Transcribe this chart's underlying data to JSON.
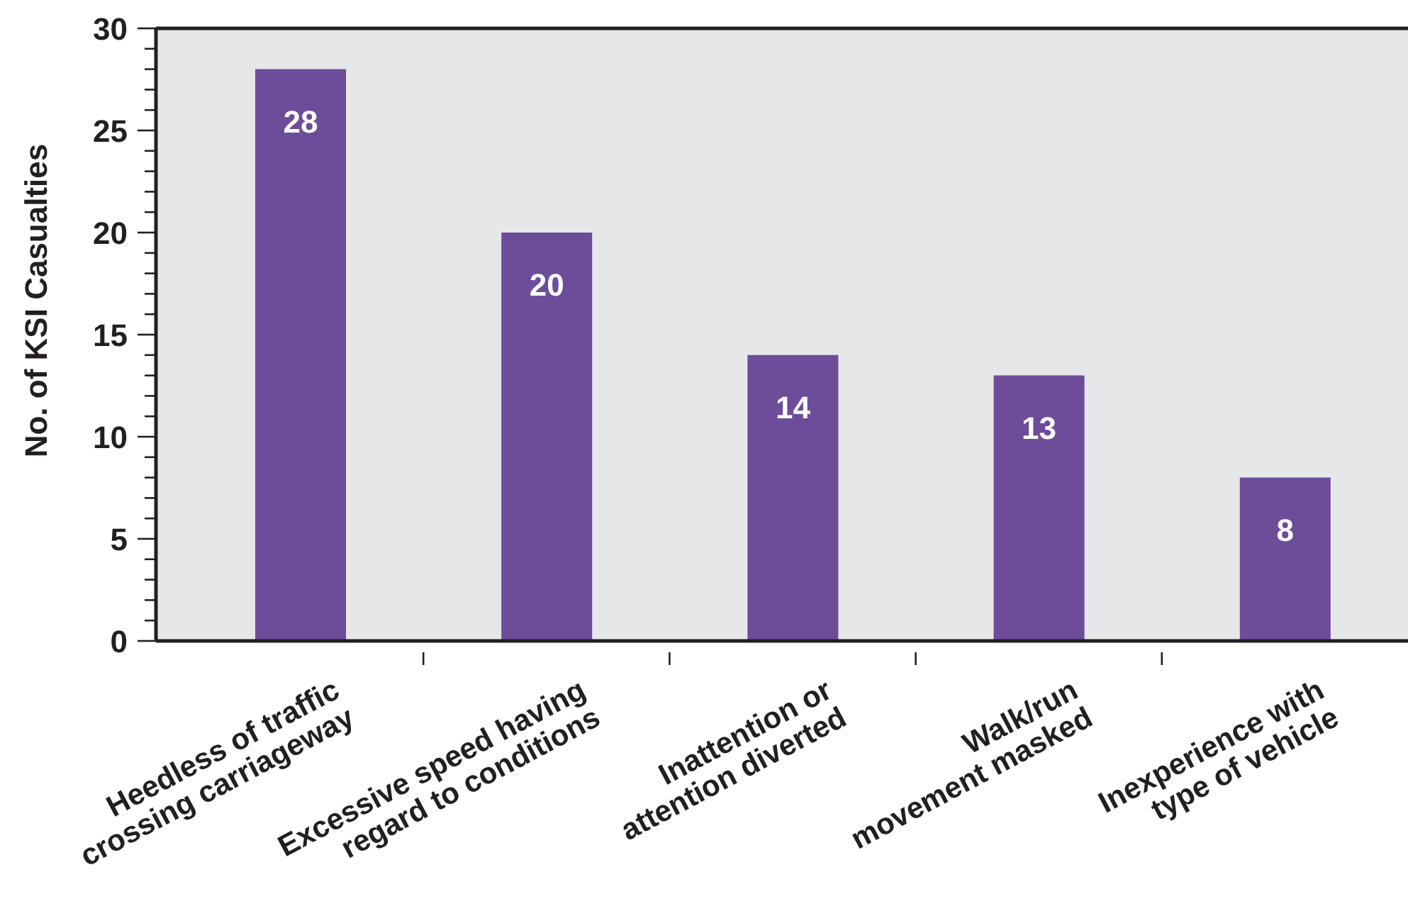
{
  "chart_data": {
    "type": "bar",
    "ylabel": "No. of KSI Casualties",
    "categories": [
      "Heedless of traffic\ncrossing carriageway",
      "Excessive speed having\nregard to conditions",
      "Inattention or\nattention diverted",
      "Walk/run\nmovement masked",
      "Inexperience with\ntype of vehicle"
    ],
    "values": [
      28,
      20,
      14,
      13,
      8
    ],
    "color": "#6d4c9a",
    "data_labels": true,
    "ylim": [
      0,
      30
    ],
    "yticks": [
      0,
      {
        "value": 1,
        "label": null
      },
      {
        "value": 2,
        "label": null
      },
      {
        "value": 3,
        "label": null
      },
      {
        "value": 4,
        "label": null
      },
      5,
      {
        "value": 6,
        "label": null
      },
      {
        "value": 7,
        "label": null
      },
      {
        "value": 8,
        "label": null
      },
      {
        "value": 9,
        "label": null
      },
      10,
      {
        "value": 11,
        "label": null
      },
      {
        "value": 12,
        "label": null
      },
      {
        "value": 13,
        "label": null
      },
      {
        "value": 14,
        "label": null
      },
      15,
      {
        "value": 16,
        "label": null
      },
      {
        "value": 17,
        "label": null
      },
      {
        "value": 18,
        "label": null
      },
      {
        "value": 19,
        "label": null
      },
      20,
      {
        "value": 21,
        "label": null
      },
      {
        "value": 22,
        "label": null
      },
      {
        "value": 23,
        "label": null
      },
      {
        "value": 24,
        "label": null
      },
      25,
      {
        "value": 26,
        "label": null
      },
      {
        "value": 27,
        "label": null
      },
      {
        "value": 28,
        "label": null
      },
      {
        "value": 29,
        "label": null
      },
      30
    ]
  }
}
